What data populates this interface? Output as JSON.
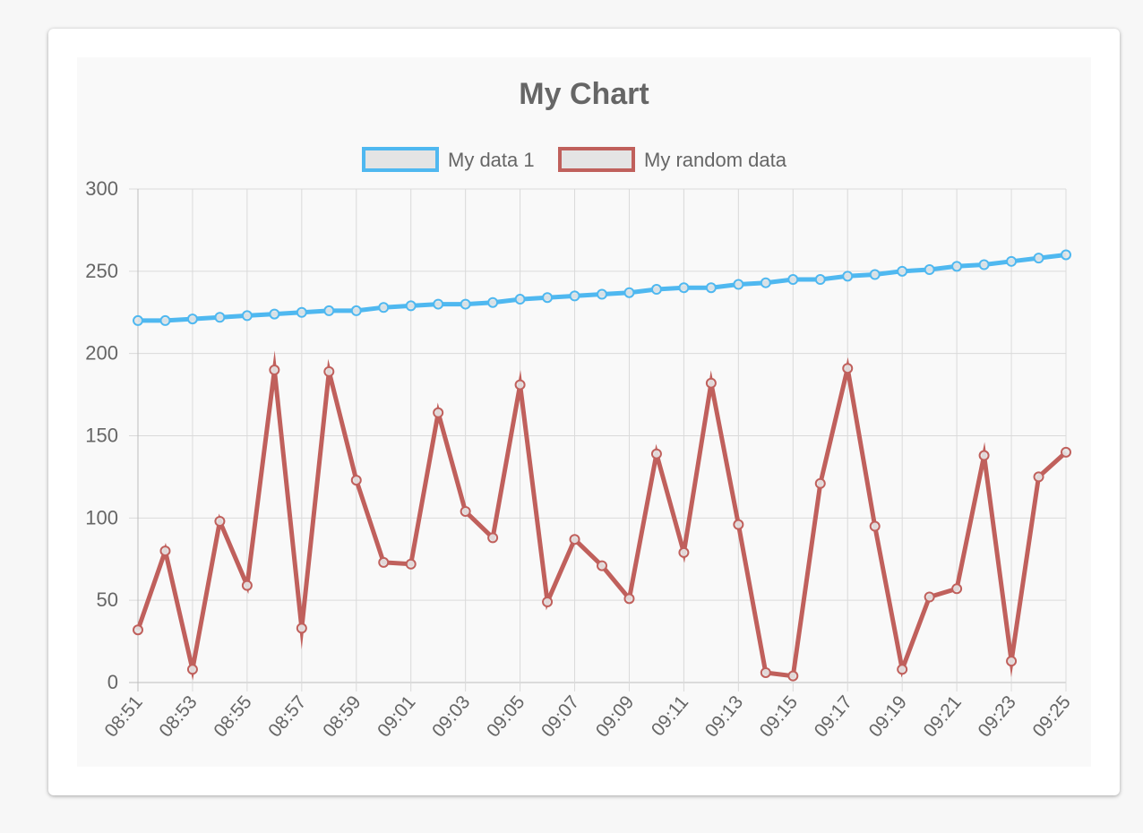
{
  "chart_data": {
    "type": "line",
    "title": "My Chart",
    "xlabel": "",
    "ylabel": "",
    "ylim": [
      0,
      300
    ],
    "yticks": [
      0,
      50,
      100,
      150,
      200,
      250,
      300
    ],
    "grid": true,
    "legend_position": "top",
    "x": [
      "08:51",
      "08:52",
      "08:53",
      "08:54",
      "08:55",
      "08:56",
      "08:57",
      "08:58",
      "08:59",
      "09:00",
      "09:01",
      "09:02",
      "09:03",
      "09:04",
      "09:05",
      "09:06",
      "09:07",
      "09:08",
      "09:09",
      "09:10",
      "09:11",
      "09:12",
      "09:13",
      "09:14",
      "09:15",
      "09:16",
      "09:17",
      "09:18",
      "09:19",
      "09:20",
      "09:21",
      "09:22",
      "09:23",
      "09:24",
      "09:25"
    ],
    "x_tick_labels": [
      "08:51",
      "08:53",
      "08:55",
      "08:57",
      "08:59",
      "09:01",
      "09:03",
      "09:05",
      "09:07",
      "09:09",
      "09:11",
      "09:13",
      "09:15",
      "09:17",
      "09:19",
      "09:21",
      "09:23",
      "09:25"
    ],
    "series": [
      {
        "name": "My data 1",
        "color": "#4fb8f0",
        "values": [
          220,
          220,
          221,
          222,
          223,
          224,
          225,
          226,
          226,
          228,
          229,
          230,
          230,
          231,
          233,
          234,
          235,
          236,
          237,
          239,
          240,
          240,
          242,
          243,
          245,
          245,
          247,
          248,
          250,
          251,
          253,
          254,
          256,
          258,
          260
        ]
      },
      {
        "name": "My random data",
        "color": "#c0605c",
        "values": [
          32,
          80,
          8,
          98,
          59,
          190,
          33,
          189,
          123,
          73,
          72,
          164,
          104,
          88,
          181,
          49,
          87,
          71,
          51,
          139,
          79,
          182,
          96,
          6,
          4,
          121,
          191,
          95,
          8,
          52,
          57,
          138,
          13,
          125,
          140
        ]
      }
    ]
  }
}
